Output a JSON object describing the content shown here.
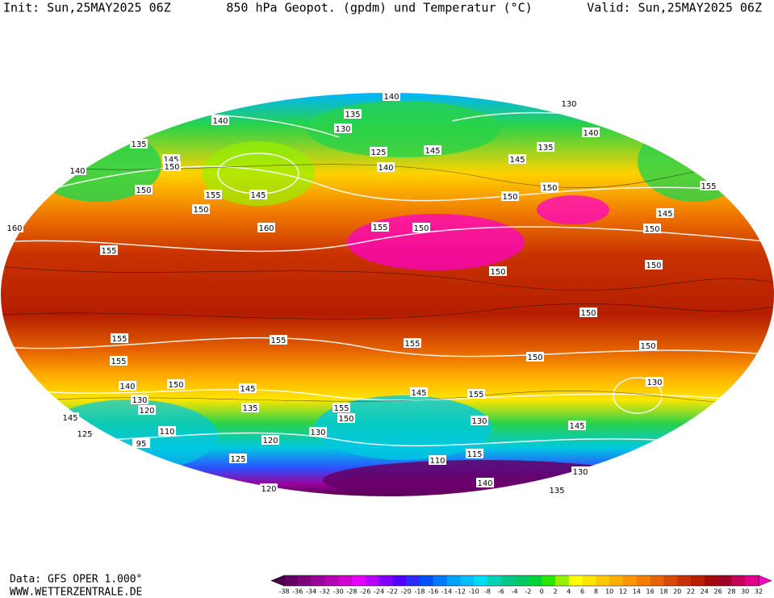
{
  "header": {
    "init": "Init: Sun,25MAY2025 06Z",
    "title": "850 hPa Geopot. (gpdm) und Temperatur (°C)",
    "valid": "Valid: Sun,25MAY2025 06Z"
  },
  "map": {
    "contour_labels": [
      "140",
      "130",
      "135",
      "130",
      "140",
      "135",
      "145",
      "150",
      "140",
      "125",
      "145",
      "135",
      "140",
      "145",
      "140",
      "150",
      "155",
      "145",
      "150",
      "150",
      "150",
      "155",
      "145",
      "160",
      "155",
      "160",
      "155",
      "150",
      "150",
      "150",
      "150",
      "150",
      "155",
      "155",
      "155",
      "150",
      "150",
      "155",
      "150",
      "140",
      "130",
      "120",
      "145",
      "125",
      "110",
      "95",
      "145",
      "135",
      "120",
      "130",
      "150",
      "155",
      "130",
      "155",
      "145",
      "130",
      "145",
      "125",
      "110",
      "115",
      "140",
      "120",
      "135",
      "130"
    ]
  },
  "footer": {
    "source": "Data: GFS OPER 1.000°",
    "website": "WWW.WETTERZENTRALE.DE"
  },
  "colorbar": {
    "ticks": [
      -38,
      -36,
      -34,
      -32,
      -30,
      -28,
      -26,
      -24,
      -22,
      -20,
      -18,
      -16,
      -14,
      -12,
      -10,
      -8,
      -6,
      -4,
      -2,
      0,
      2,
      4,
      6,
      8,
      10,
      12,
      14,
      16,
      18,
      20,
      22,
      24,
      26,
      28,
      30,
      32
    ],
    "colors": [
      "#4b0046",
      "#640064",
      "#7d007d",
      "#9b009b",
      "#b400b4",
      "#cd00cd",
      "#e600ff",
      "#b400ff",
      "#8200ff",
      "#5000ff",
      "#2d2dff",
      "#0050ff",
      "#0078ff",
      "#00a0ff",
      "#00beff",
      "#00dcf0",
      "#00d2b4",
      "#00c88c",
      "#00c864",
      "#00d23c",
      "#28e600",
      "#96f000",
      "#ffff00",
      "#ffe600",
      "#ffc800",
      "#ffaf00",
      "#ff9600",
      "#f57d00",
      "#e66400",
      "#d74b00",
      "#c83200",
      "#b91e00",
      "#a50a0a",
      "#a00028",
      "#c3005a",
      "#e1008c",
      "#ff00c8"
    ]
  }
}
